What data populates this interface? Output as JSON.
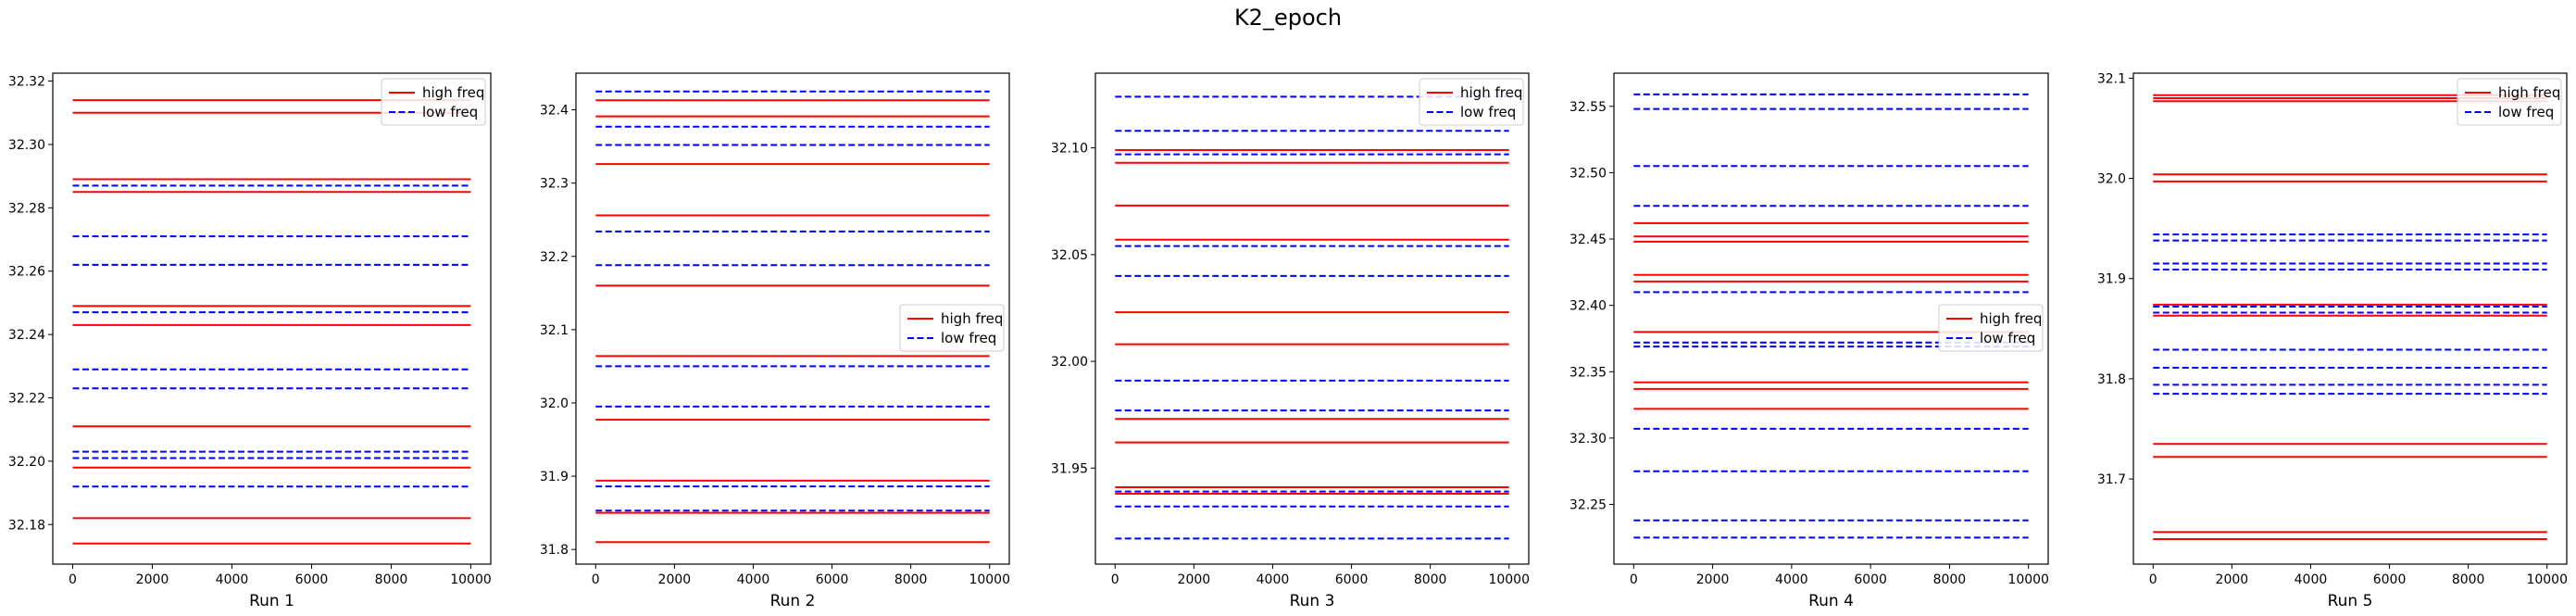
{
  "figure": {
    "title": "K2_epoch",
    "colors": {
      "high": "#ff0000",
      "low": "#0000ff",
      "axes": "#000000",
      "legend_border": "#cccccc"
    }
  },
  "chart_data": [
    {
      "type": "line",
      "xlabel": "Run 1",
      "xlim": [
        -500,
        10500
      ],
      "xticks": [
        0,
        2000,
        4000,
        6000,
        8000,
        10000
      ],
      "ylim": [
        32.1675,
        32.3225
      ],
      "yticks": [
        "32.18",
        "32.20",
        "32.22",
        "32.24",
        "32.26",
        "32.28",
        "32.30",
        "32.32"
      ],
      "legend": {
        "position": "upper-right",
        "entries": [
          {
            "label": "high freq",
            "style": "solid",
            "color": "#ff0000"
          },
          {
            "label": "low freq",
            "style": "dashed",
            "color": "#0000ff"
          }
        ]
      },
      "series": [
        {
          "name": "high freq",
          "style": "solid",
          "color": "#ff0000",
          "values": [
            32.314,
            32.31,
            32.289,
            32.285,
            32.249,
            32.243,
            32.211,
            32.198,
            32.182,
            32.174
          ]
        },
        {
          "name": "low freq",
          "style": "dashed",
          "color": "#0000ff",
          "values": [
            32.287,
            32.271,
            32.262,
            32.247,
            32.229,
            32.223,
            32.203,
            32.201,
            32.192
          ]
        }
      ]
    },
    {
      "type": "line",
      "xlabel": "Run 2",
      "xlim": [
        -500,
        10500
      ],
      "xticks": [
        0,
        2000,
        4000,
        6000,
        8000,
        10000
      ],
      "ylim": [
        31.78,
        32.45
      ],
      "yticks": [
        "31.8",
        "31.9",
        "32.0",
        "32.1",
        "32.2",
        "32.3",
        "32.4"
      ],
      "legend": {
        "position": "center-right",
        "entries": [
          {
            "label": "high freq",
            "style": "solid",
            "color": "#ff0000"
          },
          {
            "label": "low freq",
            "style": "dashed",
            "color": "#0000ff"
          }
        ]
      },
      "series": [
        {
          "name": "high freq",
          "style": "solid",
          "color": "#ff0000",
          "values": [
            32.413,
            32.391,
            32.326,
            32.256,
            32.16,
            32.064,
            31.977,
            31.894,
            31.85,
            31.81
          ]
        },
        {
          "name": "low freq",
          "style": "dashed",
          "color": "#0000ff",
          "values": [
            32.425,
            32.377,
            32.352,
            32.234,
            32.188,
            32.05,
            31.995,
            31.886,
            31.853
          ]
        }
      ]
    },
    {
      "type": "line",
      "xlabel": "Run 3",
      "xlim": [
        -500,
        10500
      ],
      "xticks": [
        0,
        2000,
        4000,
        6000,
        8000,
        10000
      ],
      "ylim": [
        31.905,
        32.135
      ],
      "yticks": [
        "31.95",
        "32.00",
        "32.05",
        "32.10"
      ],
      "legend": {
        "position": "upper-right",
        "entries": [
          {
            "label": "high freq",
            "style": "solid",
            "color": "#ff0000"
          },
          {
            "label": "low freq",
            "style": "dashed",
            "color": "#0000ff"
          }
        ]
      },
      "series": [
        {
          "name": "high freq",
          "style": "solid",
          "color": "#ff0000",
          "values": [
            32.099,
            32.093,
            32.073,
            32.057,
            32.023,
            32.008,
            31.973,
            31.962,
            31.941,
            31.938
          ]
        },
        {
          "name": "low freq",
          "style": "dashed",
          "color": "#0000ff",
          "values": [
            32.124,
            32.108,
            32.097,
            32.054,
            32.04,
            31.991,
            31.977,
            31.939,
            31.932,
            31.917
          ]
        }
      ]
    },
    {
      "type": "line",
      "xlabel": "Run 4",
      "xlim": [
        -500,
        10500
      ],
      "xticks": [
        0,
        2000,
        4000,
        6000,
        8000,
        10000
      ],
      "ylim": [
        32.205,
        32.575
      ],
      "yticks": [
        "32.25",
        "32.30",
        "32.35",
        "32.40",
        "32.45",
        "32.50",
        "32.55"
      ],
      "legend": {
        "position": "center-right",
        "entries": [
          {
            "label": "high freq",
            "style": "solid",
            "color": "#ff0000"
          },
          {
            "label": "low freq",
            "style": "dashed",
            "color": "#0000ff"
          }
        ]
      },
      "series": [
        {
          "name": "high freq",
          "style": "solid",
          "color": "#ff0000",
          "values": [
            32.462,
            32.452,
            32.448,
            32.423,
            32.418,
            32.38,
            32.342,
            32.337,
            32.322
          ]
        },
        {
          "name": "low freq",
          "style": "dashed",
          "color": "#0000ff",
          "values": [
            32.559,
            32.548,
            32.505,
            32.475,
            32.41,
            32.372,
            32.369,
            32.307,
            32.275,
            32.238,
            32.225
          ]
        }
      ]
    },
    {
      "type": "line",
      "xlabel": "Run 5",
      "xlim": [
        -500,
        10500
      ],
      "xticks": [
        0,
        2000,
        4000,
        6000,
        8000,
        10000
      ],
      "ylim": [
        31.615,
        32.105
      ],
      "yticks": [
        "31.7",
        "31.8",
        "31.9",
        "32.0",
        "32.1"
      ],
      "legend": {
        "position": "upper-right",
        "entries": [
          {
            "label": "high freq",
            "style": "solid",
            "color": "#ff0000"
          },
          {
            "label": "low freq",
            "style": "dashed",
            "color": "#0000ff"
          }
        ]
      },
      "series": [
        {
          "name": "high freq",
          "style": "solid",
          "color": "#ff0000",
          "values": [
            32.083,
            32.08,
            32.077,
            32.004,
            31.997,
            31.874,
            31.863,
            31.735,
            31.722,
            31.647,
            31.64
          ]
        },
        {
          "name": "low freq",
          "style": "dashed",
          "color": "#0000ff",
          "values": [
            31.944,
            31.938,
            31.915,
            31.909,
            31.872,
            31.866,
            31.829,
            31.811,
            31.794,
            31.785
          ]
        }
      ]
    }
  ]
}
